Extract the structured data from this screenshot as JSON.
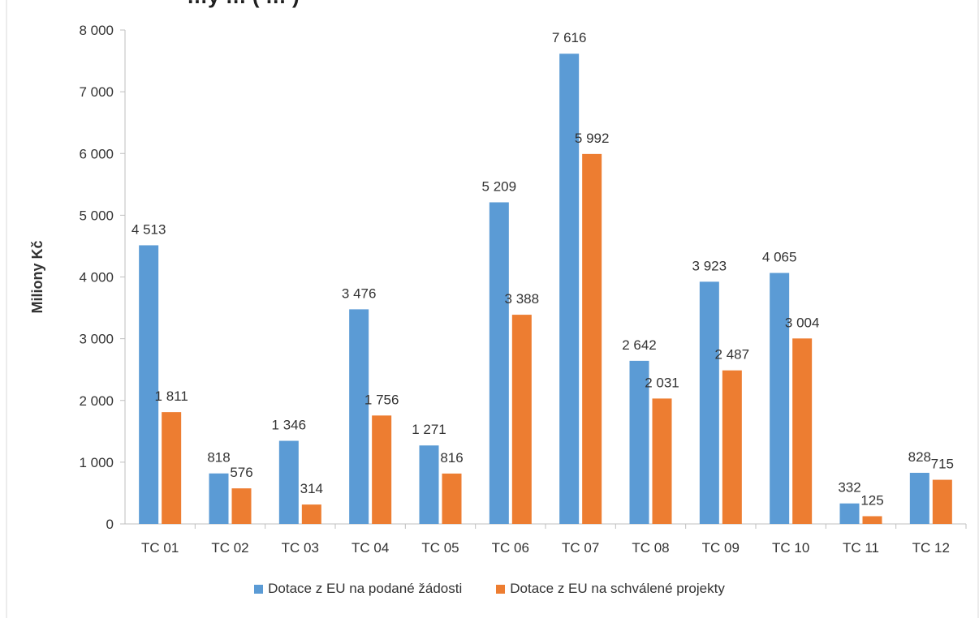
{
  "chart_data": {
    "type": "bar",
    "title": "…y … ( … )",
    "xlabel": "",
    "ylabel": "Miliony Kč",
    "ylim": [
      0,
      8000
    ],
    "yticks": [
      0,
      1000,
      2000,
      3000,
      4000,
      5000,
      6000,
      7000,
      8000
    ],
    "ytick_labels": [
      "0",
      "1 000",
      "2 000",
      "3 000",
      "4 000",
      "5 000",
      "6 000",
      "7 000",
      "8 000"
    ],
    "categories": [
      "TC 01",
      "TC 02",
      "TC 03",
      "TC 04",
      "TC 05",
      "TC 06",
      "TC 07",
      "TC 08",
      "TC 09",
      "TC 10",
      "TC 11",
      "TC 12"
    ],
    "series": [
      {
        "name": "Dotace z EU na podané žádosti",
        "color": "#5B9BD5",
        "values": [
          4513,
          818,
          1346,
          3476,
          1271,
          5209,
          7616,
          2642,
          3923,
          4065,
          332,
          828
        ],
        "labels": [
          "4 513",
          "818",
          "1 346",
          "3 476",
          "1 271",
          "5 209",
          "7 616",
          "2 642",
          "3 923",
          "4 065",
          "332",
          "828"
        ]
      },
      {
        "name": "Dotace z EU na schválené projekty",
        "color": "#ED7D31",
        "values": [
          1811,
          576,
          314,
          1756,
          816,
          3388,
          5992,
          2031,
          2487,
          3004,
          125,
          715
        ],
        "labels": [
          "1 811",
          "576",
          "314",
          "1 756",
          "816",
          "3 388",
          "5 992",
          "2 031",
          "2 487",
          "3 004",
          "125",
          "715"
        ]
      }
    ],
    "grid": false,
    "legend_position": "bottom"
  }
}
